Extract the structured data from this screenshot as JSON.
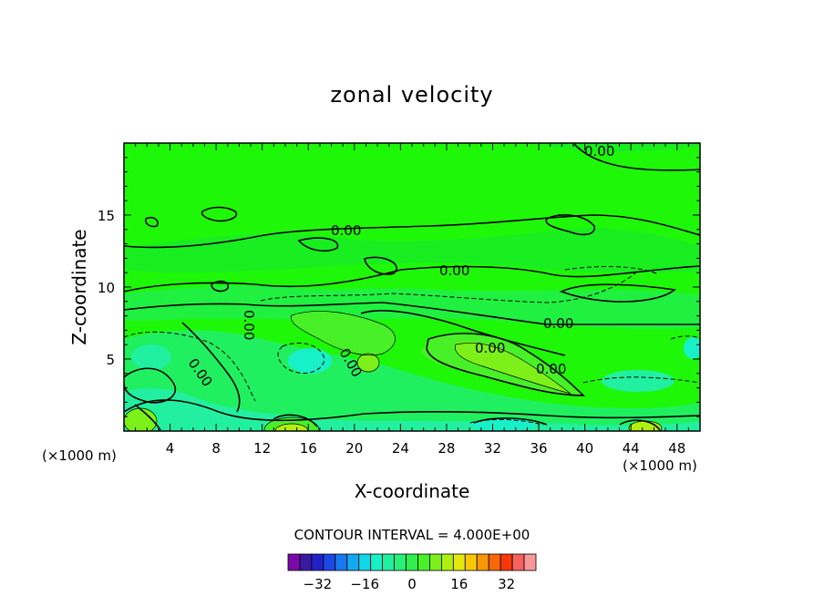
{
  "chart_data": {
    "type": "heatmap",
    "title": "zonal velocity",
    "xlabel": "X-coordinate",
    "ylabel": "Z-coordinate",
    "x_unit_left": "(×1000 m)",
    "x_unit_right": "(×1000 m)",
    "xlim": [
      0,
      50
    ],
    "ylim": [
      0,
      20
    ],
    "x_ticks": [
      4,
      8,
      12,
      16,
      20,
      24,
      28,
      32,
      36,
      40,
      44,
      48
    ],
    "y_ticks": [
      5,
      10,
      15
    ],
    "contour_interval_label": "CONTOUR INTERVAL = 4.000E+00",
    "contour_labels": [
      "0.00",
      "0.00",
      "0.00",
      "0.00",
      "0.00",
      "0.00",
      "0.00",
      "0.00",
      "0.00"
    ],
    "colorbar": {
      "colors": [
        "#7a0aa8",
        "#3a1aa0",
        "#2222c8",
        "#1e48e6",
        "#1a78f0",
        "#14a8f0",
        "#10d8e8",
        "#18f0c8",
        "#20f0a0",
        "#28f078",
        "#30f050",
        "#48f028",
        "#7cf018",
        "#b0f010",
        "#e4e80c",
        "#f8c808",
        "#f89808",
        "#f86808",
        "#f83808",
        "#f86060",
        "#f89898"
      ],
      "tick_labels": [
        "-32",
        "-16",
        "0",
        "16",
        "32"
      ],
      "tick_values": [
        -32,
        -16,
        0,
        16,
        32
      ],
      "range": [
        -42,
        42
      ]
    }
  }
}
